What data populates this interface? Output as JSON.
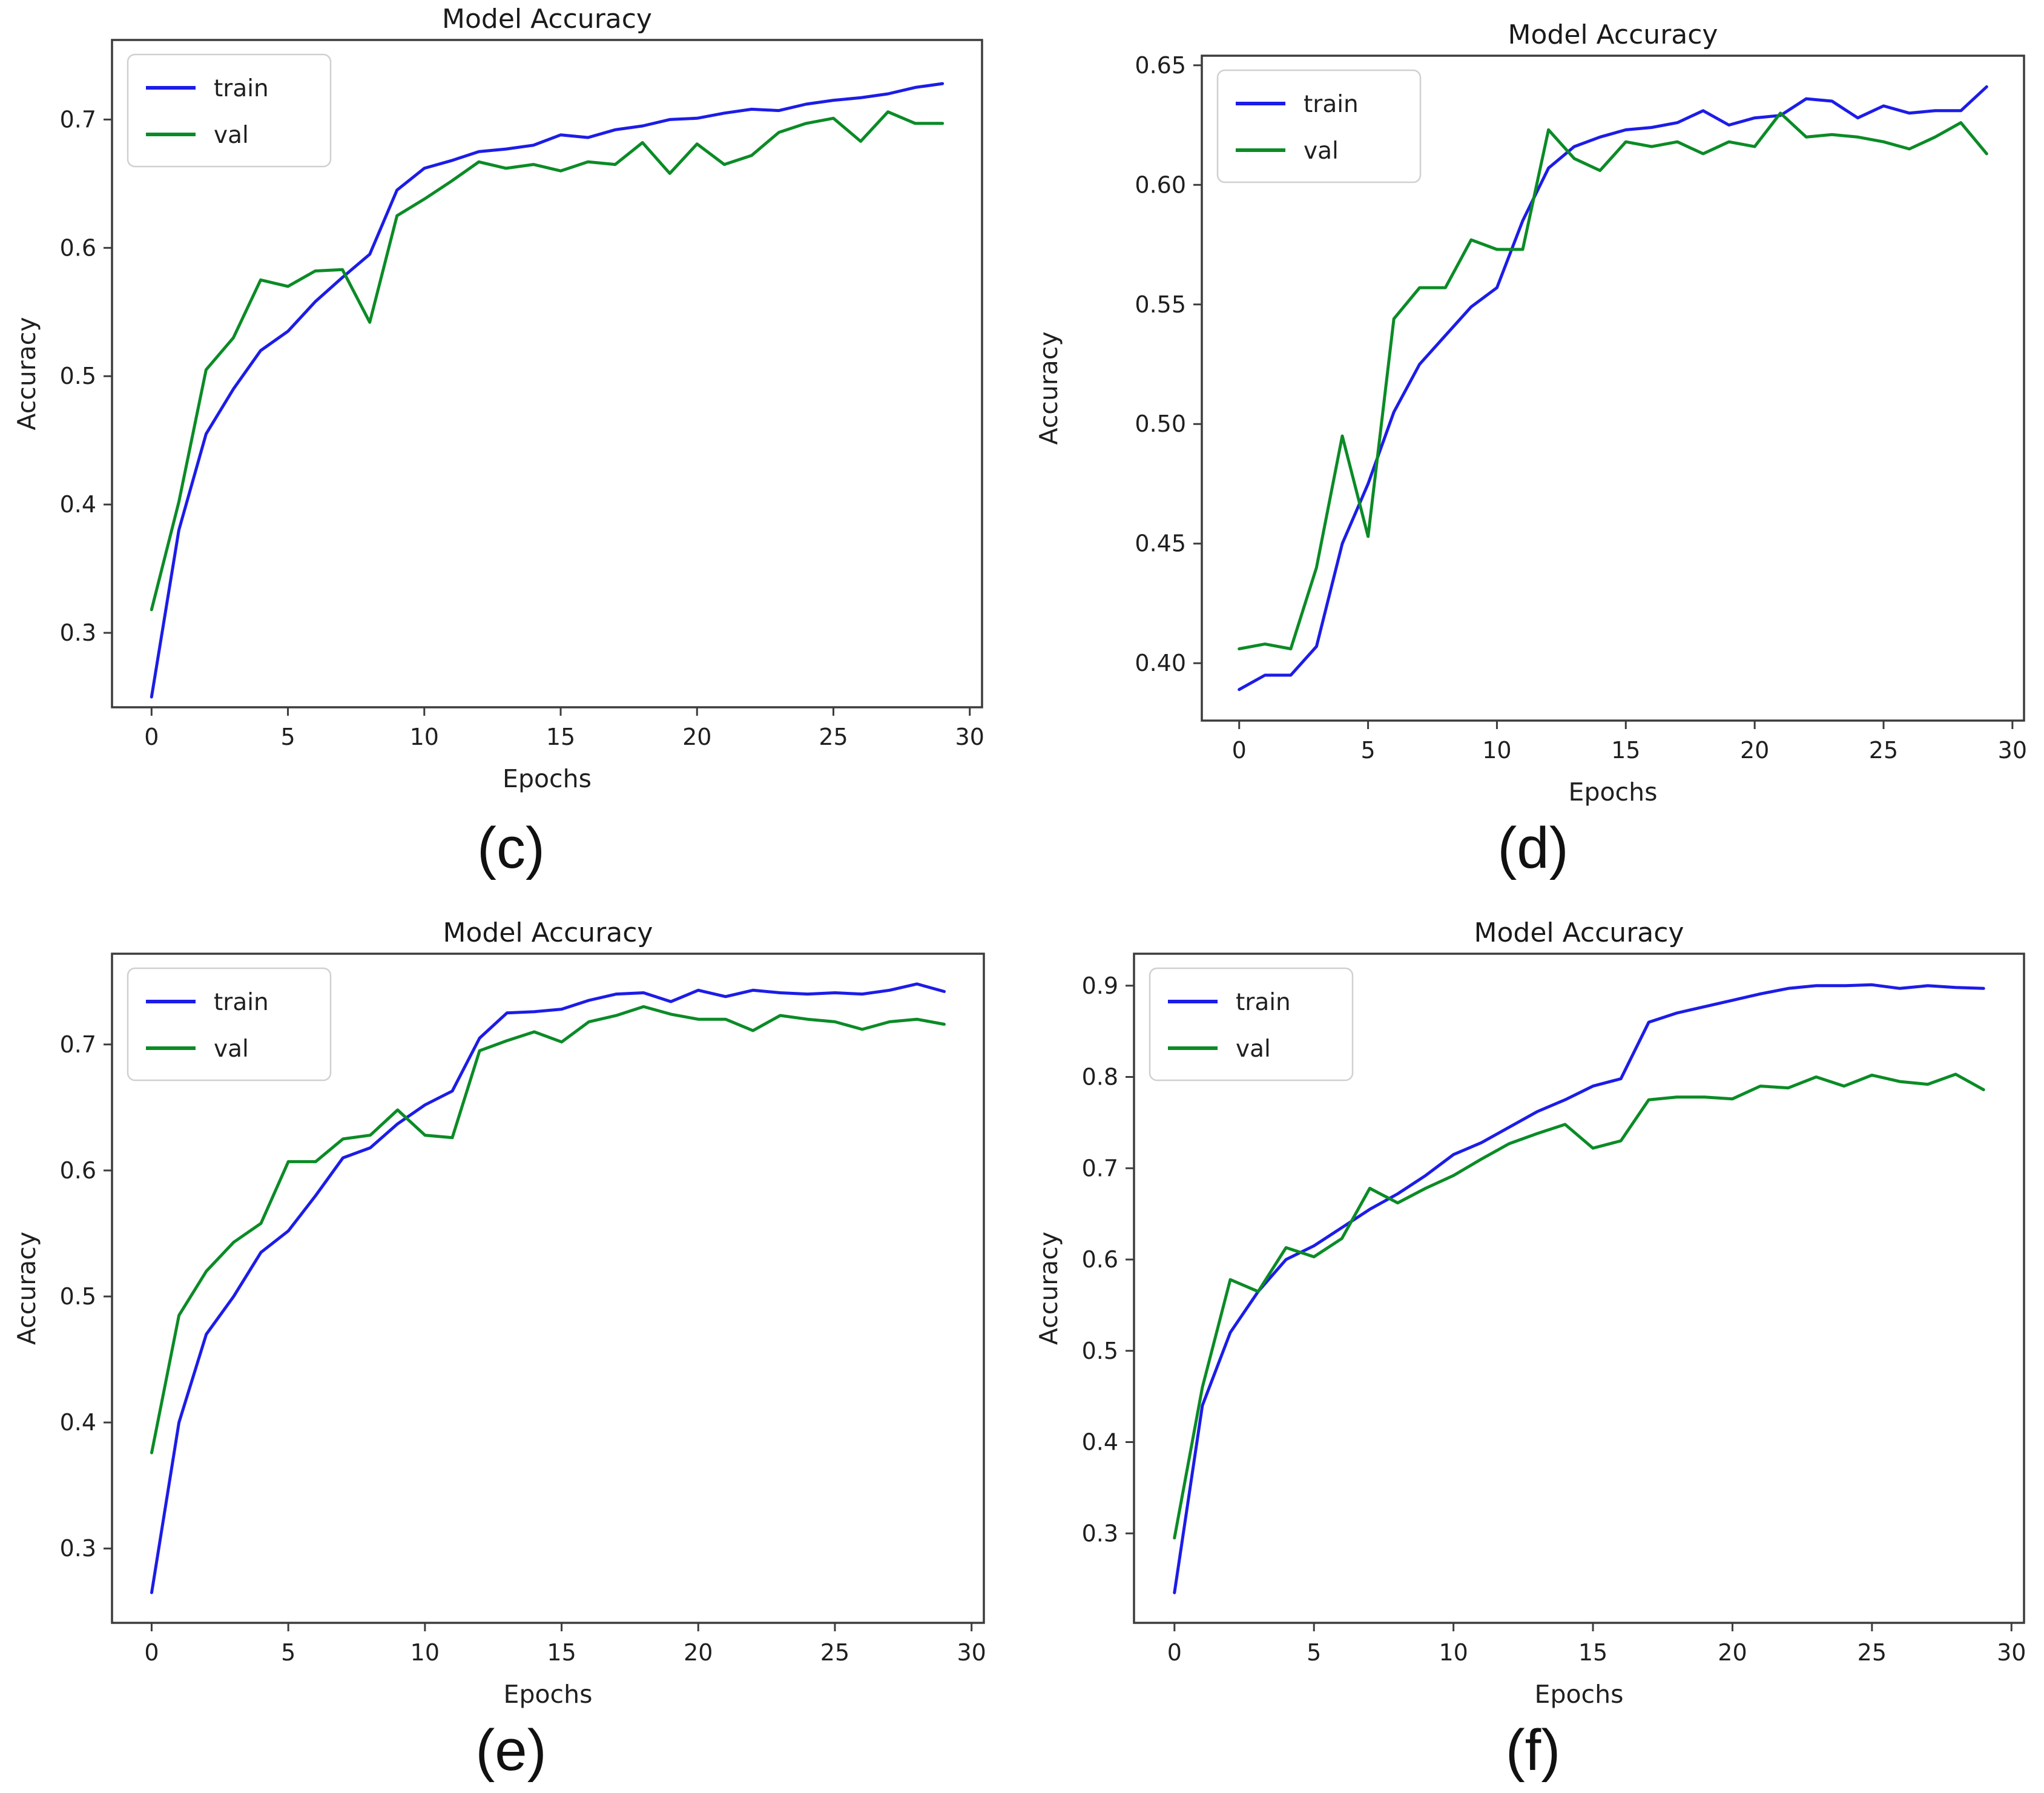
{
  "page": {
    "background": "#ffffff"
  },
  "colors": {
    "train": "#1c1ce8",
    "val": "#0b8b26",
    "spine": "#3c3c3c",
    "tick_text": "#1f1f1f",
    "title_text": "#1a1a1a",
    "legend_border": "#d0d0d0",
    "legend_bg": "#ffffff"
  },
  "chart_data": [
    {
      "type": "line",
      "title": "Model Accuracy",
      "xlabel": "Epochs",
      "ylabel": "Accuracy",
      "caption": "(c)",
      "legend": [
        "train",
        "val"
      ],
      "legend_position": "upper left",
      "grid": false,
      "xlim": [
        -1.45,
        30.45
      ],
      "ylim": [
        0.242,
        0.762
      ],
      "xticks": [
        0,
        5,
        10,
        15,
        20,
        25,
        30
      ],
      "xtick_labels": [
        "0",
        "5",
        "10",
        "15",
        "20",
        "25",
        "30"
      ],
      "yticks": [
        0.3,
        0.4,
        0.5,
        0.6,
        0.7
      ],
      "ytick_labels": [
        "0.3",
        "0.4",
        "0.5",
        "0.6",
        "0.7"
      ],
      "x": [
        0,
        1,
        2,
        3,
        4,
        5,
        6,
        7,
        8,
        9,
        10,
        11,
        12,
        13,
        14,
        15,
        16,
        17,
        18,
        19,
        20,
        21,
        22,
        23,
        24,
        25,
        26,
        27,
        28,
        29
      ],
      "series": [
        {
          "name": "train",
          "color_key": "train",
          "values": [
            0.25,
            0.38,
            0.455,
            0.49,
            0.52,
            0.535,
            0.558,
            0.577,
            0.595,
            0.645,
            0.662,
            0.668,
            0.675,
            0.677,
            0.68,
            0.688,
            0.686,
            0.692,
            0.695,
            0.7,
            0.701,
            0.705,
            0.708,
            0.707,
            0.712,
            0.715,
            0.717,
            0.72,
            0.725,
            0.728
          ]
        },
        {
          "name": "val",
          "color_key": "val",
          "values": [
            0.318,
            0.402,
            0.505,
            0.53,
            0.575,
            0.57,
            0.582,
            0.583,
            0.542,
            0.625,
            0.638,
            0.652,
            0.667,
            0.662,
            0.665,
            0.66,
            0.667,
            0.665,
            0.682,
            0.658,
            0.681,
            0.665,
            0.672,
            0.69,
            0.697,
            0.701,
            0.683,
            0.706,
            0.697,
            0.697
          ]
        }
      ]
    },
    {
      "type": "line",
      "title": "Model Accuracy",
      "xlabel": "Epochs",
      "ylabel": "Accuracy",
      "caption": "(d)",
      "legend": [
        "train",
        "val"
      ],
      "legend_position": "upper left",
      "grid": false,
      "xlim": [
        -1.45,
        30.45
      ],
      "ylim": [
        0.376,
        0.654
      ],
      "xticks": [
        0,
        5,
        10,
        15,
        20,
        25,
        30
      ],
      "xtick_labels": [
        "0",
        "5",
        "10",
        "15",
        "20",
        "25",
        "30"
      ],
      "yticks": [
        0.4,
        0.45,
        0.5,
        0.55,
        0.6,
        0.65
      ],
      "ytick_labels": [
        "0.40",
        "0.45",
        "0.50",
        "0.55",
        "0.60",
        "0.65"
      ],
      "x": [
        0,
        1,
        2,
        3,
        4,
        5,
        6,
        7,
        8,
        9,
        10,
        11,
        12,
        13,
        14,
        15,
        16,
        17,
        18,
        19,
        20,
        21,
        22,
        23,
        24,
        25,
        26,
        27,
        28,
        29
      ],
      "series": [
        {
          "name": "train",
          "color_key": "train",
          "values": [
            0.389,
            0.395,
            0.395,
            0.407,
            0.45,
            0.475,
            0.505,
            0.525,
            0.537,
            0.549,
            0.557,
            0.585,
            0.607,
            0.616,
            0.62,
            0.623,
            0.624,
            0.626,
            0.631,
            0.625,
            0.628,
            0.629,
            0.636,
            0.635,
            0.628,
            0.633,
            0.63,
            0.631,
            0.631,
            0.641
          ]
        },
        {
          "name": "val",
          "color_key": "val",
          "values": [
            0.406,
            0.408,
            0.406,
            0.44,
            0.495,
            0.453,
            0.544,
            0.557,
            0.557,
            0.577,
            0.573,
            0.573,
            0.623,
            0.611,
            0.606,
            0.618,
            0.616,
            0.618,
            0.613,
            0.618,
            0.616,
            0.63,
            0.62,
            0.621,
            0.62,
            0.618,
            0.615,
            0.62,
            0.626,
            0.613
          ]
        }
      ]
    },
    {
      "type": "line",
      "title": "Model Accuracy",
      "xlabel": "Epochs",
      "ylabel": "Accuracy",
      "caption": "(e)",
      "legend": [
        "train",
        "val"
      ],
      "legend_position": "upper left",
      "grid": false,
      "xlim": [
        -1.45,
        30.45
      ],
      "ylim": [
        0.241,
        0.772
      ],
      "xticks": [
        0,
        5,
        10,
        15,
        20,
        25,
        30
      ],
      "xtick_labels": [
        "0",
        "5",
        "10",
        "15",
        "20",
        "25",
        "30"
      ],
      "yticks": [
        0.3,
        0.4,
        0.5,
        0.6,
        0.7
      ],
      "ytick_labels": [
        "0.3",
        "0.4",
        "0.5",
        "0.6",
        "0.7"
      ],
      "x": [
        0,
        1,
        2,
        3,
        4,
        5,
        6,
        7,
        8,
        9,
        10,
        11,
        12,
        13,
        14,
        15,
        16,
        17,
        18,
        19,
        20,
        21,
        22,
        23,
        24,
        25,
        26,
        27,
        28,
        29
      ],
      "series": [
        {
          "name": "train",
          "color_key": "train",
          "values": [
            0.265,
            0.4,
            0.47,
            0.5,
            0.535,
            0.552,
            0.58,
            0.61,
            0.618,
            0.637,
            0.652,
            0.663,
            0.705,
            0.725,
            0.726,
            0.728,
            0.735,
            0.74,
            0.741,
            0.734,
            0.743,
            0.738,
            0.743,
            0.741,
            0.74,
            0.741,
            0.74,
            0.743,
            0.748,
            0.742
          ]
        },
        {
          "name": "val",
          "color_key": "val",
          "values": [
            0.376,
            0.485,
            0.52,
            0.543,
            0.558,
            0.607,
            0.607,
            0.625,
            0.628,
            0.648,
            0.628,
            0.626,
            0.695,
            0.703,
            0.71,
            0.702,
            0.718,
            0.723,
            0.73,
            0.724,
            0.72,
            0.72,
            0.711,
            0.723,
            0.72,
            0.718,
            0.712,
            0.718,
            0.72,
            0.716
          ]
        }
      ]
    },
    {
      "type": "line",
      "title": "Model Accuracy",
      "xlabel": "Epochs",
      "ylabel": "Accuracy",
      "caption": "(f)",
      "legend": [
        "train",
        "val"
      ],
      "legend_position": "upper left",
      "grid": false,
      "xlim": [
        -1.45,
        30.45
      ],
      "ylim": [
        0.202,
        0.935
      ],
      "xticks": [
        0,
        5,
        10,
        15,
        20,
        25,
        30
      ],
      "xtick_labels": [
        "0",
        "5",
        "10",
        "15",
        "20",
        "25",
        "30"
      ],
      "yticks": [
        0.3,
        0.4,
        0.5,
        0.6,
        0.7,
        0.8,
        0.9
      ],
      "ytick_labels": [
        "0.3",
        "0.4",
        "0.5",
        "0.6",
        "0.7",
        "0.8",
        "0.9"
      ],
      "x": [
        0,
        1,
        2,
        3,
        4,
        5,
        6,
        7,
        8,
        9,
        10,
        11,
        12,
        13,
        14,
        15,
        16,
        17,
        18,
        19,
        20,
        21,
        22,
        23,
        24,
        25,
        26,
        27,
        28,
        29
      ],
      "series": [
        {
          "name": "train",
          "color_key": "train",
          "values": [
            0.235,
            0.44,
            0.52,
            0.565,
            0.6,
            0.615,
            0.635,
            0.655,
            0.672,
            0.692,
            0.715,
            0.728,
            0.745,
            0.762,
            0.775,
            0.79,
            0.798,
            0.86,
            0.87,
            0.877,
            0.884,
            0.891,
            0.897,
            0.9,
            0.9,
            0.901,
            0.897,
            0.9,
            0.898,
            0.897
          ]
        },
        {
          "name": "val",
          "color_key": "val",
          "values": [
            0.295,
            0.46,
            0.578,
            0.565,
            0.613,
            0.603,
            0.623,
            0.678,
            0.662,
            0.678,
            0.692,
            0.71,
            0.727,
            0.738,
            0.748,
            0.722,
            0.73,
            0.775,
            0.778,
            0.778,
            0.776,
            0.79,
            0.788,
            0.8,
            0.79,
            0.802,
            0.795,
            0.792,
            0.803,
            0.786
          ]
        }
      ]
    }
  ]
}
